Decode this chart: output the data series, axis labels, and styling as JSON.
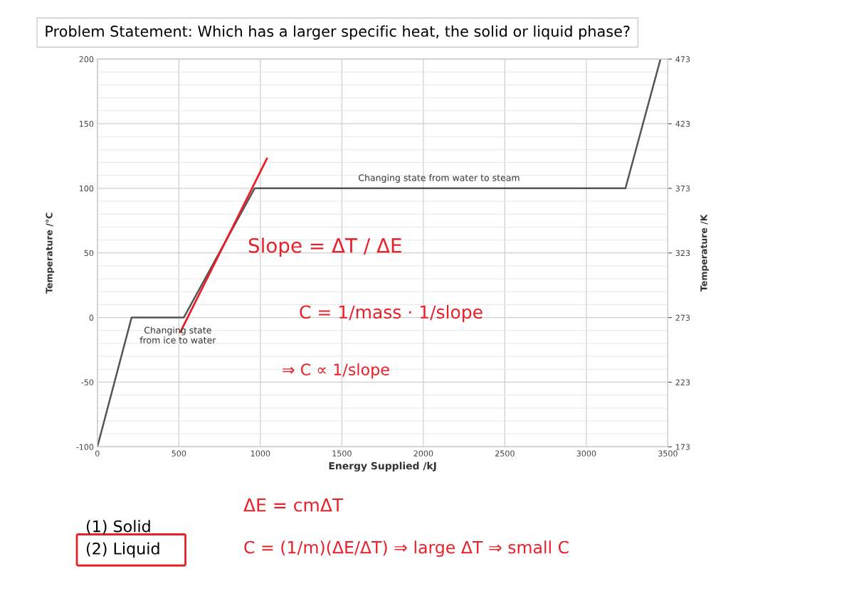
{
  "chart_data": {
    "type": "line",
    "title": "Problem Statement: Which has a larger specific heat, the solid or liquid phase?",
    "xlabel": "Energy Supplied /kJ",
    "ylabel": "Temperature /°C",
    "y2label": "Temperature /K",
    "series": [
      {
        "color": "#555555",
        "x": [
          0,
          210,
          530,
          965,
          3240,
          3455
        ],
        "values": [
          -100,
          0,
          0,
          100,
          100,
          200
        ]
      },
      {
        "color": "#e8202a",
        "x": [
          510,
          1040
        ],
        "values": [
          -11,
          123
        ]
      }
    ],
    "xlim": [
      0,
      3500
    ],
    "xticks": [
      0,
      500,
      1000,
      1500,
      2000,
      2500,
      3000,
      3500
    ],
    "ylim": [
      -100,
      200
    ],
    "yticks": [
      -100,
      -50,
      0,
      50,
      100,
      150,
      200
    ],
    "y2lim": [
      173,
      473
    ],
    "y2ticks": [
      173,
      223,
      273,
      323,
      373,
      423,
      473
    ],
    "grid": true,
    "marker": "none",
    "line_style": "solid",
    "annotations": [
      "Changing state\nfrom ice to water",
      "Changing state from water to steam",
      "Slope = ΔT / ΔE",
      "C = 1/mass · 1/slope",
      "⇒ C ∝ 1/slope",
      "ΔE = cmΔT",
      "C = (1/m)(ΔE/ΔT) ⇒ large ΔT ⇒ small C",
      "(1) Solid",
      "(2) Liquid"
    ]
  }
}
